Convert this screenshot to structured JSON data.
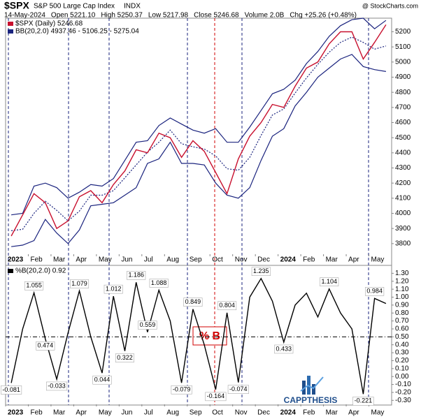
{
  "chart_data": [
    {
      "type": "line",
      "title": "$SPX",
      "subtitle": "S&P 500 Large Cap Index",
      "exchange": "INDX",
      "source": "@ StockCharts.com",
      "header": [
        "14-May-2024",
        "Open 5221.10",
        "High 5250.37",
        "Low 5217.98",
        "Close 5246.68",
        "Volume 2.0B",
        "Chg +25.26 (+0.48%)"
      ],
      "categories": [
        "2023",
        null,
        "Feb",
        null,
        "Mar",
        null,
        "Apr",
        null,
        "May",
        null,
        "Jun",
        null,
        "Jul",
        null,
        "Aug",
        null,
        "Sep",
        null,
        "Oct",
        null,
        "Nov",
        null,
        "Dec",
        null,
        "2024",
        null,
        "Feb",
        null,
        "Mar",
        null,
        "Apr",
        null,
        "May",
        null
      ],
      "series": [
        {
          "name": "$SPX (Daily) 5246.68",
          "color": "#c8102e",
          "values": [
            3850,
            3990,
            4130,
            4070,
            3900,
            3950,
            4110,
            4150,
            4070,
            4190,
            4280,
            4420,
            4400,
            4530,
            4500,
            4370,
            4480,
            4410,
            4270,
            4130,
            4360,
            4510,
            4600,
            4720,
            4700,
            4840,
            4960,
            5000,
            5120,
            5200,
            5200,
            5020,
            5130,
            5246.68
          ]
        }
      ],
      "bands": {
        "name": "BB(20,2.0) 4937.46 - 5106.25 - 5275.04",
        "color": "#1a237e",
        "upper": [
          3990,
          4000,
          4180,
          4200,
          4170,
          4100,
          4140,
          4190,
          4180,
          4230,
          4350,
          4470,
          4480,
          4580,
          4630,
          4590,
          4550,
          4530,
          4560,
          4470,
          4470,
          4570,
          4680,
          4790,
          4820,
          4880,
          4990,
          5070,
          5170,
          5240,
          5280,
          5290,
          5220,
          5275.04
        ],
        "middle": [
          3885,
          3895,
          4000,
          4080,
          4020,
          3950,
          4015,
          4120,
          4120,
          4150,
          4235,
          4320,
          4405,
          4470,
          4550,
          4460,
          4440,
          4425,
          4380,
          4295,
          4285,
          4370,
          4515,
          4650,
          4690,
          4795,
          4895,
          4985,
          5065,
          5130,
          5165,
          5130,
          5085,
          5106.25
        ],
        "lower": [
          3780,
          3790,
          3820,
          3960,
          3870,
          3800,
          3890,
          4050,
          4060,
          4070,
          4120,
          4170,
          4330,
          4360,
          4470,
          4330,
          4330,
          4320,
          4200,
          4120,
          4100,
          4170,
          4350,
          4510,
          4560,
          4710,
          4800,
          4900,
          4960,
          5020,
          5050,
          4970,
          4950,
          4937.46
        ]
      },
      "ylim": [
        3730,
        5290
      ],
      "yticks": [
        3800,
        3900,
        4000,
        4100,
        4200,
        4300,
        4400,
        4500,
        4600,
        4700,
        4800,
        4900,
        5000,
        5100,
        5200
      ],
      "grid": false
    },
    {
      "type": "line",
      "title": "%B(20,2.0) 0.92",
      "annotation": "% B",
      "logo": "CAPPTHESIS",
      "categories": [
        "2023",
        null,
        "Feb",
        null,
        "Mar",
        null,
        "Apr",
        null,
        "May",
        null,
        "Jun",
        null,
        "Jul",
        null,
        "Aug",
        null,
        "Sep",
        null,
        "Oct",
        null,
        "Nov",
        null,
        "Dec",
        null,
        "2024",
        null,
        "Feb",
        null,
        "Mar",
        null,
        "Apr",
        null,
        "May",
        null
      ],
      "series": [
        {
          "color": "#000000",
          "values": [
            -0.081,
            0.6,
            1.055,
            0.474,
            -0.033,
            0.55,
            1.079,
            0.5,
            0.044,
            1.012,
            0.322,
            1.186,
            0.559,
            1.088,
            0.7,
            -0.079,
            0.849,
            0.4,
            -0.164,
            0.804,
            -0.074,
            1.0,
            1.235,
            0.95,
            0.433,
            0.9,
            1.05,
            0.75,
            1.104,
            0.8,
            0.6,
            -0.221,
            0.984,
            0.92
          ],
          "value_labels": [
            "-0.081",
            null,
            "1.055",
            "0.474",
            "-0.033",
            null,
            "1.079",
            null,
            "0.044",
            "1.012",
            "0.322",
            "1.186",
            "0.559",
            "1.088",
            null,
            "-0.079",
            "0.849",
            null,
            "-0.164",
            "0.804",
            "-0.074",
            null,
            "1.235",
            null,
            "0.433",
            null,
            null,
            null,
            "1.104",
            null,
            null,
            "-0.221",
            "0.984",
            null
          ]
        }
      ],
      "ylim": [
        -0.35,
        1.4
      ],
      "yticks": [
        {
          "value": 1.3,
          "label": "1.30"
        },
        {
          "value": 1.2,
          "label": "1.20"
        },
        {
          "value": 1.1,
          "label": "1.10"
        },
        {
          "value": 1.0,
          "label": "1.00"
        },
        {
          "value": 0.9,
          "label": "0.90"
        },
        {
          "value": 0.8,
          "label": "0.80"
        },
        {
          "value": 0.7,
          "label": "0.70"
        },
        {
          "value": 0.6,
          "label": "0.60"
        },
        {
          "value": 0.5,
          "label": "0.50"
        },
        {
          "value": 0.4,
          "label": "0.40"
        },
        {
          "value": 0.3,
          "label": "0.30"
        },
        {
          "value": 0.2,
          "label": "0.20"
        },
        {
          "value": 0.1,
          "label": "0.10"
        },
        {
          "value": 0.0,
          "label": "0.00"
        },
        {
          "value": -0.1,
          "label": "-0.10"
        },
        {
          "value": -0.2,
          "label": "-0.20"
        },
        {
          "value": -0.3,
          "label": "-0.30"
        }
      ],
      "hline": 0.5
    }
  ]
}
